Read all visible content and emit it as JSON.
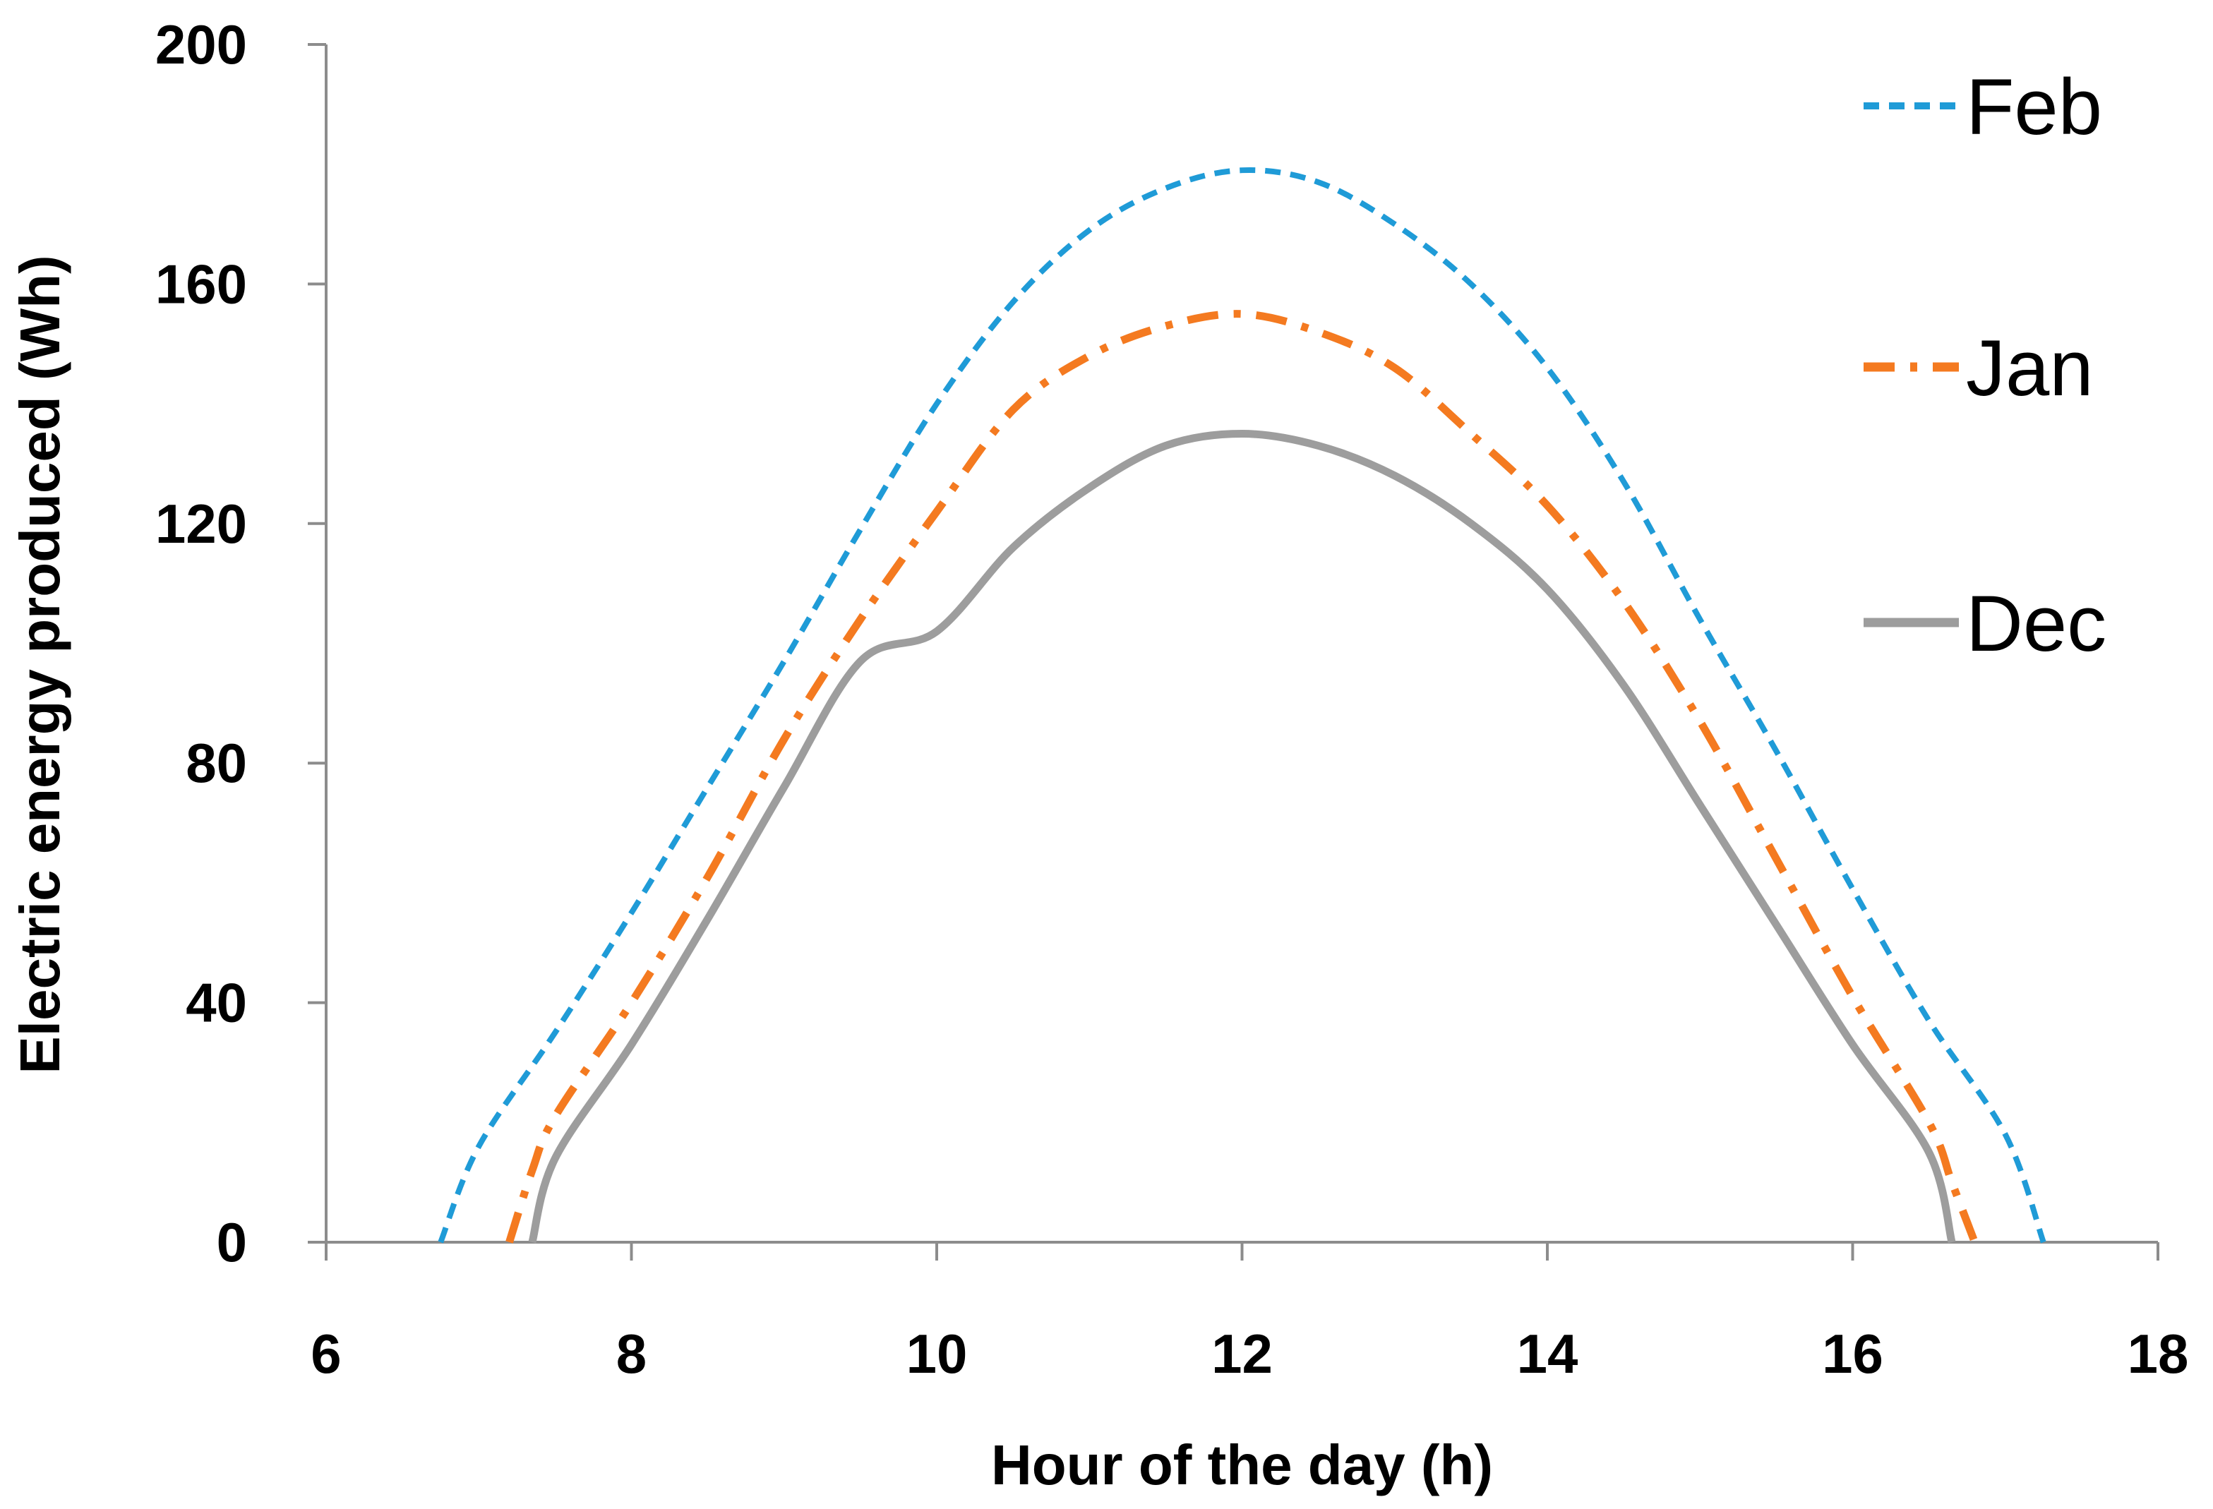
{
  "chart_data": {
    "type": "line",
    "xlabel": "Hour of the day (h)",
    "ylabel": "Electric energy produced  (Wh)",
    "xlim": [
      6,
      18
    ],
    "ylim": [
      0,
      200
    ],
    "xticks": [
      6,
      8,
      10,
      12,
      14,
      16,
      18
    ],
    "yticks": [
      0,
      40,
      80,
      120,
      160,
      200
    ],
    "grid": false,
    "legend_position": "top-right",
    "series": [
      {
        "name": "Feb",
        "color": "#1f9bd7",
        "style": "dashed",
        "x": [
          6.75,
          7.0,
          7.5,
          8.0,
          8.5,
          9.0,
          9.5,
          10.0,
          10.5,
          11.0,
          11.5,
          12.0,
          12.5,
          13.0,
          13.5,
          14.0,
          14.5,
          15.0,
          15.5,
          16.0,
          16.5,
          17.0,
          17.25
        ],
        "y": [
          0,
          16,
          35,
          55,
          76,
          97,
          119,
          140,
          157,
          169,
          176,
          179,
          177,
          170,
          160,
          146,
          127,
          104,
          82,
          59,
          37,
          18,
          0
        ]
      },
      {
        "name": "Jan",
        "color": "#f47a20",
        "style": "dashdot",
        "x": [
          7.2,
          7.35,
          7.5,
          8.0,
          8.5,
          9.0,
          9.5,
          10.0,
          10.5,
          11.0,
          11.5,
          12.0,
          12.5,
          13.0,
          13.5,
          14.0,
          14.5,
          15.0,
          15.5,
          16.0,
          16.5,
          16.65,
          16.8
        ],
        "y": [
          0,
          12,
          21,
          40,
          61,
          84,
          104,
          122,
          139,
          148,
          153,
          155,
          152,
          146,
          135,
          123,
          107,
          87,
          64,
          41,
          20,
          10,
          0
        ]
      },
      {
        "name": "Dec",
        "color": "#9d9d9d",
        "style": "solid",
        "x": [
          7.35,
          7.5,
          8.0,
          8.5,
          9.0,
          9.5,
          10.0,
          10.5,
          11.0,
          11.5,
          12.0,
          12.5,
          13.0,
          13.5,
          14.0,
          14.5,
          15.0,
          15.5,
          16.0,
          16.5,
          16.65
        ],
        "y": [
          0,
          14,
          33,
          54,
          76,
          97,
          102,
          116,
          126,
          133,
          135,
          133,
          128,
          120,
          109,
          93,
          73,
          53,
          33,
          15,
          0
        ]
      }
    ]
  }
}
